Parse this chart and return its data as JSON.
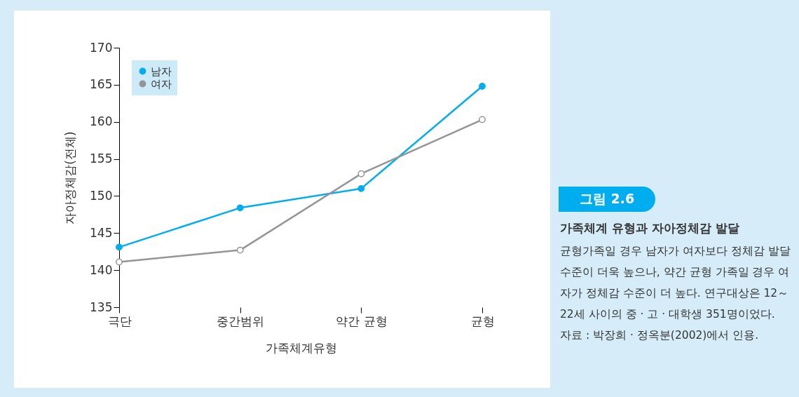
{
  "chart_data": {
    "type": "line",
    "title": "그림 2.6",
    "subtitle": "가족체계 유형과 자아정체감 발달",
    "xlabel": "가족체계유형",
    "ylabel": "자아정체감(전체)",
    "categories": [
      "극단",
      "중간범위",
      "약간 균형",
      "균형"
    ],
    "series": [
      {
        "name": "남자",
        "color": "#00aeef",
        "values": [
          143.1,
          148.4,
          151.0,
          164.8
        ]
      },
      {
        "name": "여자",
        "color": "#939598",
        "values": [
          141.1,
          142.7,
          153.0,
          160.3
        ]
      }
    ],
    "ylim": [
      135,
      170
    ],
    "yticks": [
      135,
      140,
      145,
      150,
      155,
      160,
      165,
      170
    ],
    "grid": false,
    "legend": "top left",
    "marker": "circle",
    "line_style": "solid",
    "annotations": [
      "균형가족일 경우 남자가 여자보다 정체감 발달수준이 더욱 높으나, 약간 균형 가족일 경우 여자가 정체감 수준이 더 높다. 연구대상은 12～22세 사이의 중 · 고 · 대학생 351명이었다.",
      "자료 : 박장희 · 정옥분(2002)에서 인용."
    ]
  }
}
